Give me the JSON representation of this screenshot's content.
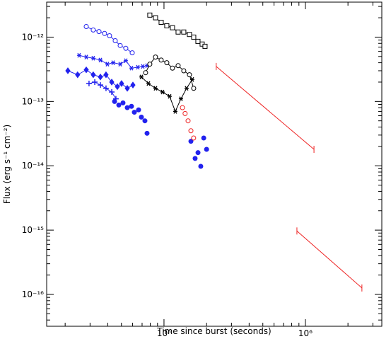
{
  "chart_data": {
    "type": "scatter",
    "x_label": "Time since burst (seconds)",
    "y_label": "Flux (erg s⁻¹ cm⁻²)",
    "xscale": "log",
    "yscale": "log",
    "xlim": [
      14800,
      3470000
    ],
    "ylim": [
      3.2e-17,
      3.5e-12
    ],
    "xticks": [
      {
        "value": 100000,
        "label": "10⁵"
      },
      {
        "value": 1000000,
        "label": "10⁶"
      }
    ],
    "yticks": [
      {
        "value": 1e-16,
        "label": "10⁻¹⁶"
      },
      {
        "value": 1e-15,
        "label": "10⁻¹⁵"
      },
      {
        "value": 1e-14,
        "label": "10⁻¹⁴"
      },
      {
        "value": 1e-13,
        "label": "10⁻¹³"
      },
      {
        "value": 1e-12,
        "label": "10⁻¹²"
      }
    ],
    "minor_ticks": true,
    "series": [
      {
        "color": "#2222ee",
        "marker": "open-circle",
        "line": true,
        "x": [
          28200,
          31600,
          34700,
          38000,
          41200,
          45200,
          49000,
          53700,
          59600
        ],
        "values": [
          1.46e-12,
          1.29e-12,
          1.22e-12,
          1.14e-12,
          1.05e-12,
          8.8e-13,
          7.4e-13,
          6.7e-13,
          5.7e-13
        ]
      },
      {
        "color": "#2222ee",
        "marker": "star",
        "line": true,
        "x": [
          25100,
          28200,
          31600,
          35500,
          39800,
          43700,
          49000,
          53700,
          58900,
          65300,
          70800,
          75900
        ],
        "values": [
          5.2e-13,
          4.9e-13,
          4.7e-13,
          4.4e-13,
          3.8e-13,
          4e-13,
          3.8e-13,
          4.3e-13,
          3.3e-13,
          3.4e-13,
          3.5e-13,
          3.6e-13
        ]
      },
      {
        "color": "#2222ee",
        "marker": "filled-diamond",
        "line": true,
        "x": [
          20900,
          24500,
          28200,
          31600,
          35500,
          38900,
          42700,
          46800,
          50100,
          55000,
          60300
        ],
        "values": [
          3e-13,
          2.6e-13,
          3.1e-13,
          2.6e-13,
          2.4e-13,
          2.6e-13,
          2e-13,
          1.7e-13,
          1.9e-13,
          1.6e-13,
          1.8e-13
        ]
      },
      {
        "color": "#2222ee",
        "marker": "cross",
        "line": true,
        "x": [
          29500,
          32400,
          35500,
          38900,
          42700,
          45700
        ],
        "values": [
          1.9e-13,
          2e-13,
          1.8e-13,
          1.6e-13,
          1.4e-13,
          1.1e-13
        ]
      },
      {
        "color": "#2222ee",
        "marker": "filled-circle",
        "line": false,
        "x": [
          44700,
          47900,
          51300,
          55000,
          58900,
          61700,
          66100,
          69200,
          73300,
          75900,
          155000,
          166000,
          174000,
          182000,
          191000,
          200000
        ],
        "values": [
          1e-13,
          8.8e-14,
          9.5e-14,
          8e-14,
          8.4e-14,
          6.8e-14,
          7.4e-14,
          5.7e-14,
          5e-14,
          3.2e-14,
          2.4e-14,
          1.3e-14,
          1.6e-14,
          9.8e-15,
          2.7e-14,
          1.8e-14
        ]
      },
      {
        "color": "#000000",
        "marker": "open-square",
        "line": true,
        "x": [
          79400,
          87100,
          95500,
          104700,
          114800,
          125900,
          138000,
          151400,
          162200,
          173800,
          186200,
          195000
        ],
        "values": [
          2.2e-12,
          2e-12,
          1.7e-12,
          1.5e-12,
          1.4e-12,
          1.2e-12,
          1.2e-12,
          1.1e-12,
          1e-12,
          8.6e-13,
          7.8e-13,
          7.2e-13
        ]
      },
      {
        "color": "#000000",
        "marker": "open-circle",
        "line": true,
        "x": [
          74100,
          79400,
          87100,
          95500,
          104700,
          114800,
          125900,
          138000,
          151400,
          162200
        ],
        "values": [
          2.8e-13,
          3.8e-13,
          4.9e-13,
          4.4e-13,
          4e-13,
          3.3e-13,
          3.6e-13,
          3e-13,
          2.6e-13,
          1.6e-13
        ]
      },
      {
        "color": "#000000",
        "marker": "star",
        "line": true,
        "x": [
          69200,
          77600,
          87100,
          97700,
          109600,
          120200,
          131800,
          144500,
          158500
        ],
        "values": [
          2.4e-13,
          1.9e-13,
          1.6e-13,
          1.4e-13,
          1.2e-13,
          7e-14,
          1.1e-13,
          1.6e-13,
          2.2e-13
        ]
      },
      {
        "color": "#ee2222",
        "marker": "open-circle",
        "line": false,
        "x": [
          135000,
          141000,
          148000,
          155000,
          162000
        ],
        "values": [
          8e-14,
          6.5e-14,
          5e-14,
          3.5e-14,
          2.7e-14
        ]
      },
      {
        "color": "#ee2222",
        "marker": "tick",
        "line": true,
        "x": [
          234000,
          1150000,
          null,
          871000,
          2510000
        ],
        "values": [
          3.5e-13,
          1.8e-14,
          null,
          9.7e-16,
          1.26e-16
        ]
      }
    ]
  }
}
